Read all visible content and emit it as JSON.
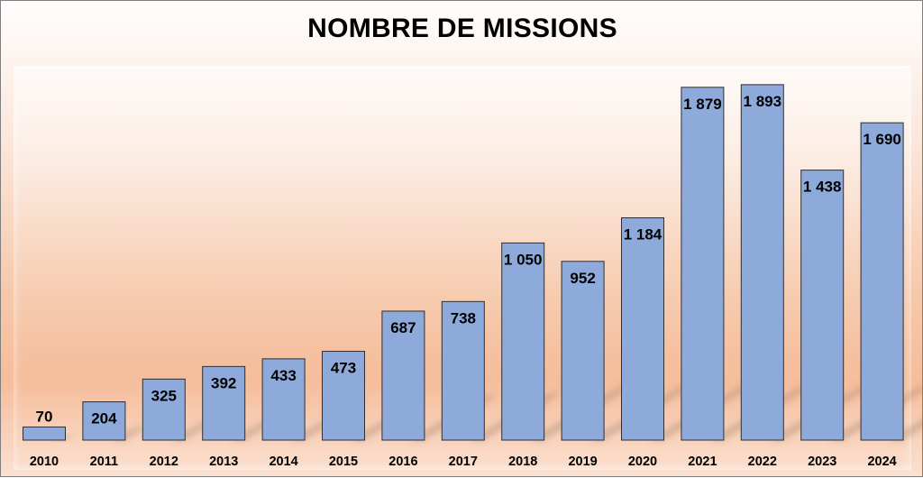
{
  "chart_data": {
    "type": "bar",
    "title": "NOMBRE DE MISSIONS",
    "xlabel": "",
    "ylabel": "",
    "categories": [
      "2010",
      "2011",
      "2012",
      "2013",
      "2014",
      "2015",
      "2016",
      "2017",
      "2018",
      "2019",
      "2020",
      "2021",
      "2022",
      "2023",
      "2024"
    ],
    "values": [
      70,
      204,
      325,
      392,
      433,
      473,
      687,
      738,
      1050,
      952,
      1184,
      1879,
      1893,
      1438,
      1690
    ],
    "value_labels": [
      "70",
      "204",
      "325",
      "392",
      "433",
      "473",
      "687",
      "738",
      "1 050",
      "952",
      "1 184",
      "1 879",
      "1 893",
      "1 438",
      "1 690"
    ],
    "ylim": [
      0,
      2000
    ],
    "grid": false,
    "legend": "none",
    "bar_color": "#8eaadb",
    "bar_outline_color": "#2f2f2f"
  }
}
